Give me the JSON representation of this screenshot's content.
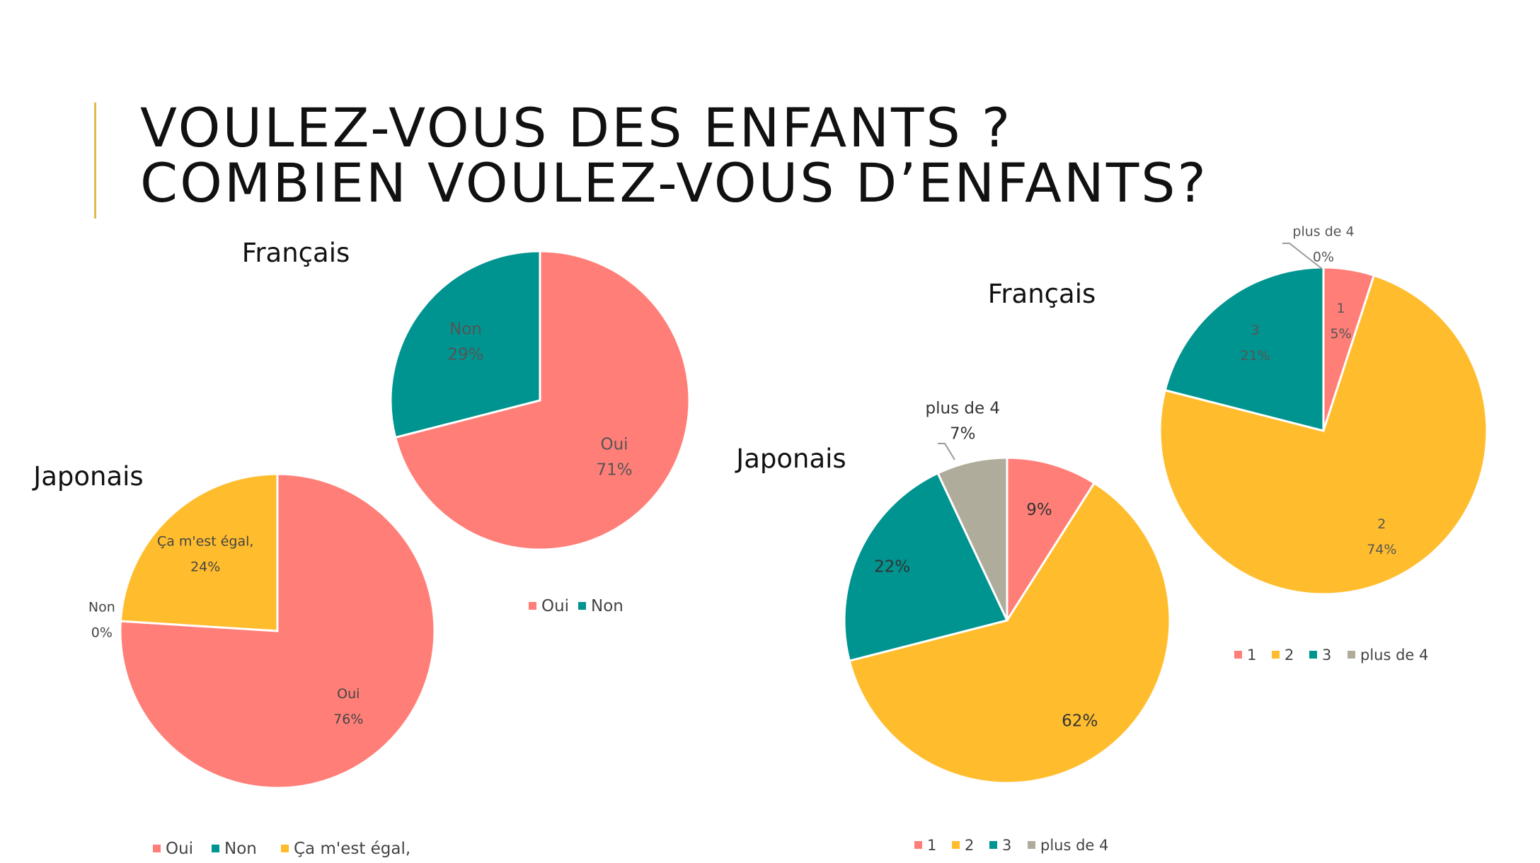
{
  "title": {
    "line1": "VOULEZ-VOUS DES ENFANTS ?",
    "line2": "COMBIEN VOULEZ-VOUS D’ENFANTS?"
  },
  "colors": {
    "pink": "#ff7f78",
    "teal": "#009490",
    "yellow": "#ffbd2e",
    "gray": "#b0ac9c",
    "accent": "#e6b84a"
  },
  "chart_data": [
    {
      "type": "pie",
      "title": "Français",
      "categories": [
        "Oui",
        "Non"
      ],
      "values": [
        71,
        29
      ],
      "labels": [
        "71%",
        "29%"
      ],
      "legend": "bottom"
    },
    {
      "type": "pie",
      "title": "Japonais",
      "categories": [
        "Oui",
        "Non",
        "Ça m'est égal,"
      ],
      "values": [
        76,
        0,
        24
      ],
      "labels": [
        "76%",
        "0%",
        "24%"
      ],
      "legend": "bottom"
    },
    {
      "type": "pie",
      "title": "Japonais",
      "categories": [
        "1",
        "2",
        "3",
        "plus de 4"
      ],
      "values": [
        9,
        62,
        22,
        7
      ],
      "labels": [
        "9%",
        "62%",
        "22%",
        "7%"
      ],
      "legend": "bottom"
    },
    {
      "type": "pie",
      "title": "Français",
      "categories": [
        "1",
        "2",
        "3",
        "plus de 4"
      ],
      "values": [
        5,
        74,
        21,
        0
      ],
      "labels": [
        "5%",
        "74%",
        "21%",
        "0%"
      ],
      "legend": "bottom"
    }
  ]
}
